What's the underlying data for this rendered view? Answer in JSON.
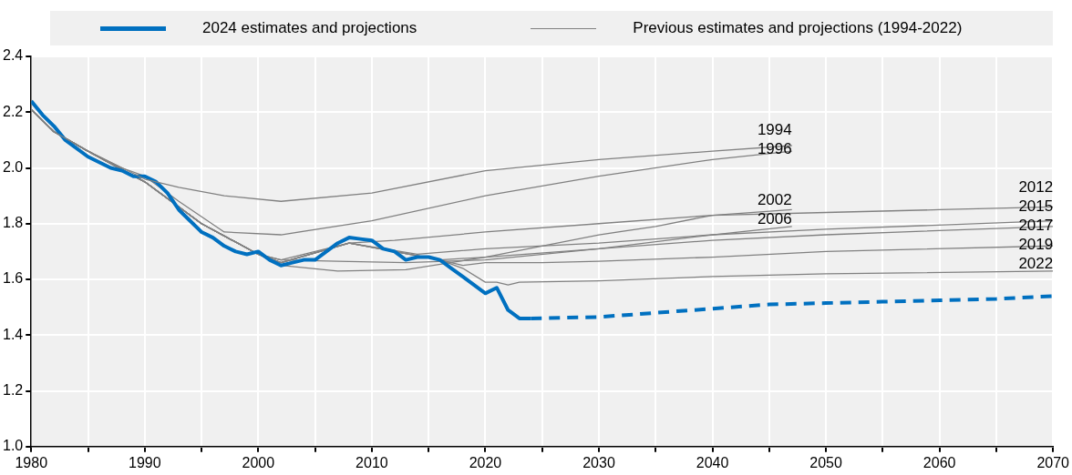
{
  "chart_data": {
    "type": "line",
    "xlim": [
      1980,
      2070
    ],
    "xticks": [
      1980,
      {
        "value": 1985,
        "label": null
      },
      1990,
      {
        "value": 1995,
        "label": null
      },
      2000,
      {
        "value": 2005,
        "label": null
      },
      2010,
      {
        "value": 2015,
        "label": null
      },
      2020,
      {
        "value": 2025,
        "label": null
      },
      2030,
      {
        "value": 2035,
        "label": null
      },
      2040,
      {
        "value": 2045,
        "label": null
      },
      2050,
      {
        "value": 2055,
        "label": null
      },
      2060,
      {
        "value": 2065,
        "label": null
      },
      2070
    ],
    "ylim": [
      1.0,
      2.4
    ],
    "yticks": [
      {
        "value": 1.0,
        "label": "1.0"
      },
      {
        "value": 1.2,
        "label": "1.2"
      },
      {
        "value": 1.4,
        "label": "1.4"
      },
      {
        "value": 1.6,
        "label": "1.6"
      },
      {
        "value": 1.8,
        "label": "1.8"
      },
      {
        "value": 2.0,
        "label": "2.0"
      },
      {
        "value": 2.2,
        "label": "2.2"
      },
      {
        "value": 2.4,
        "label": "2.4"
      }
    ],
    "grid": true,
    "legend": "top",
    "marker": "none",
    "series": [
      {
        "name": "Previous estimates and projections (1994-2022)",
        "color": "#808080",
        "x": [
          1980,
          1982,
          1985,
          1988,
          1990,
          1993,
          1997,
          2002,
          2010,
          2020,
          2030,
          2040,
          2047
        ],
        "values": [
          2.21,
          2.13,
          2.06,
          2.0,
          1.96,
          1.93,
          1.9,
          1.88,
          1.91,
          1.99,
          2.03,
          2.06,
          2.08
        ]
      },
      {
        "color": "#808080",
        "x": [
          1980,
          1982,
          1985,
          1988,
          1990,
          1993,
          1997,
          2002,
          2010,
          2020,
          2030,
          2040,
          2047
        ],
        "values": [
          2.21,
          2.13,
          2.06,
          2.0,
          1.97,
          1.88,
          1.77,
          1.76,
          1.81,
          1.9,
          1.97,
          2.03,
          2.06
        ]
      },
      {
        "color": "#808080",
        "x": [
          1980,
          1982,
          1985,
          1990,
          1995,
          2000,
          2002,
          2007,
          2013,
          2020,
          2025,
          2030,
          2035,
          2040,
          2047
        ],
        "values": [
          2.21,
          2.13,
          2.06,
          1.95,
          1.8,
          1.69,
          1.65,
          1.63,
          1.635,
          1.68,
          1.72,
          1.76,
          1.79,
          1.83,
          1.85
        ]
      },
      {
        "color": "#808080",
        "x": [
          1980,
          1982,
          1985,
          1990,
          1995,
          2000,
          2002,
          2007,
          2013,
          2020,
          2030,
          2040,
          2047
        ],
        "values": [
          2.21,
          2.13,
          2.06,
          1.95,
          1.8,
          1.69,
          1.67,
          1.665,
          1.66,
          1.67,
          1.71,
          1.76,
          1.79
        ]
      },
      {
        "color": "#808080",
        "x": [
          1980,
          1982,
          1985,
          1990,
          1995,
          2000,
          2002,
          2008,
          2012,
          2020,
          2030,
          2040,
          2050,
          2060,
          2070
        ],
        "values": [
          2.21,
          2.13,
          2.06,
          1.95,
          1.8,
          1.69,
          1.67,
          1.73,
          1.74,
          1.77,
          1.8,
          1.83,
          1.84,
          1.85,
          1.86
        ]
      },
      {
        "color": "#808080",
        "x": [
          1980,
          1982,
          1985,
          1990,
          1995,
          2000,
          2002,
          2008,
          2014,
          2020,
          2030,
          2040,
          2050,
          2070
        ],
        "values": [
          2.21,
          2.13,
          2.06,
          1.95,
          1.8,
          1.69,
          1.66,
          1.73,
          1.69,
          1.71,
          1.73,
          1.76,
          1.78,
          1.81
        ]
      },
      {
        "color": "#808080",
        "x": [
          1980,
          1982,
          1985,
          1990,
          1995,
          2000,
          2002,
          2008,
          2016,
          2020,
          2030,
          2040,
          2050,
          2070
        ],
        "values": [
          2.21,
          2.13,
          2.06,
          1.95,
          1.8,
          1.69,
          1.66,
          1.73,
          1.67,
          1.68,
          1.71,
          1.74,
          1.76,
          1.79
        ]
      },
      {
        "color": "#808080",
        "x": [
          1980,
          1982,
          1985,
          1990,
          1995,
          2000,
          2002,
          2008,
          2016,
          2018,
          2020,
          2025,
          2030,
          2040,
          2050,
          2070
        ],
        "values": [
          2.21,
          2.13,
          2.06,
          1.95,
          1.8,
          1.69,
          1.66,
          1.73,
          1.67,
          1.65,
          1.66,
          1.66,
          1.665,
          1.68,
          1.7,
          1.72
        ]
      },
      {
        "color": "#808080",
        "x": [
          1980,
          1982,
          1985,
          1990,
          1995,
          2000,
          2002,
          2008,
          2016,
          2018,
          2020,
          2021,
          2022,
          2023,
          2030,
          2040,
          2050,
          2070
        ],
        "values": [
          2.21,
          2.13,
          2.06,
          1.95,
          1.8,
          1.69,
          1.66,
          1.73,
          1.67,
          1.64,
          1.59,
          1.59,
          1.58,
          1.59,
          1.595,
          1.61,
          1.62,
          1.63
        ]
      },
      {
        "name": "2024 estimates and projections",
        "color": "#0070c0",
        "line_style": "solid",
        "x": [
          1980,
          1981,
          1982,
          1983,
          1985,
          1987,
          1988,
          1989,
          1990,
          1991,
          1992,
          1993,
          1994,
          1995,
          1996,
          1997,
          1998,
          1999,
          2000,
          2001,
          2002,
          2003,
          2004,
          2005,
          2006,
          2007,
          2008,
          2009,
          2010,
          2011,
          2012,
          2013,
          2014,
          2015,
          2016,
          2017,
          2018,
          2019,
          2020,
          2021,
          2022,
          2023,
          2024
        ],
        "values": [
          2.24,
          2.19,
          2.15,
          2.1,
          2.04,
          2.0,
          1.99,
          1.97,
          1.97,
          1.95,
          1.91,
          1.85,
          1.81,
          1.77,
          1.75,
          1.72,
          1.7,
          1.69,
          1.7,
          1.67,
          1.65,
          1.66,
          1.67,
          1.67,
          1.7,
          1.73,
          1.75,
          1.745,
          1.74,
          1.71,
          1.7,
          1.67,
          1.68,
          1.68,
          1.67,
          1.64,
          1.61,
          1.58,
          1.55,
          1.57,
          1.49,
          1.46,
          1.46
        ]
      },
      {
        "color": "#0070c0",
        "line_style": "dashed",
        "x": [
          2024,
          2030,
          2035,
          2040,
          2045,
          2050,
          2055,
          2060,
          2065,
          2070
        ],
        "values": [
          1.46,
          1.465,
          1.48,
          1.495,
          1.51,
          1.515,
          1.52,
          1.525,
          1.53,
          1.54
        ]
      }
    ],
    "annotations": [
      "1994",
      "1996",
      "2002",
      "2006",
      "2012",
      "2015",
      "2017",
      "2019",
      "2022"
    ]
  }
}
